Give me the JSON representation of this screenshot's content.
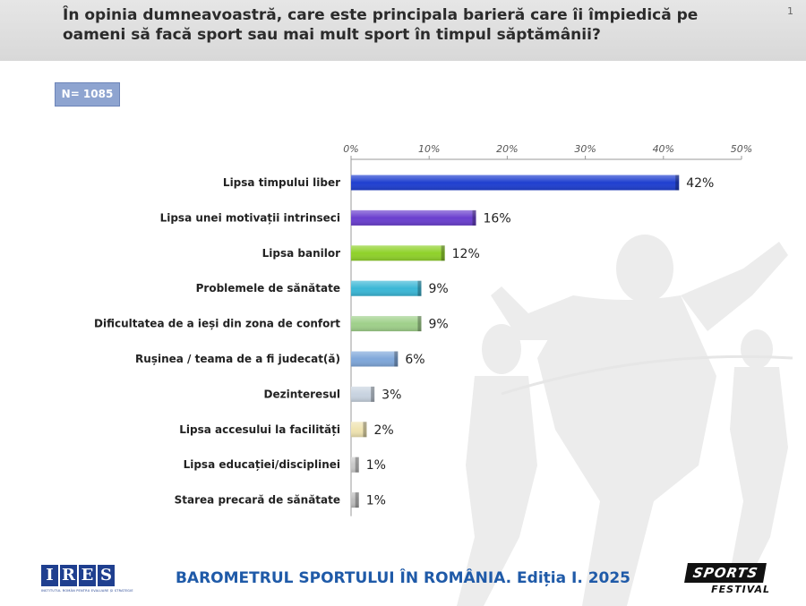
{
  "header": {
    "title_line1": "În opinia dumneavoastră, care este principala barieră care îi împiedică pe",
    "title_line2": "oameni să facă sport sau mai mult sport în timpul săptămânii?",
    "slide_mark": "1"
  },
  "sample": {
    "label": "N= 1085"
  },
  "chart_data": {
    "type": "bar",
    "orientation": "horizontal",
    "categories": [
      "Lipsa timpului liber",
      "Lipsa unei motivații intrinseci",
      "Lipsa banilor",
      "Problemele de sănătate",
      "Dificultatea de a ieși din zona de confort",
      "Rușinea / teama de a fi judecat(ă)",
      "Dezinteresul",
      "Lipsa accesului la facilități",
      "Lipsa educației/disciplinei",
      "Starea precară de sănătate"
    ],
    "values": [
      42,
      16,
      12,
      9,
      9,
      6,
      3,
      2,
      1,
      1
    ],
    "value_labels": [
      "42%",
      "16%",
      "12%",
      "9%",
      "9%",
      "6%",
      "3%",
      "2%",
      "1%",
      "1%"
    ],
    "colors": [
      "#1f3fd0",
      "#6a3fcf",
      "#8fd12a",
      "#3bb7d6",
      "#9fd08a",
      "#7fa7da",
      "#c8d3e0",
      "#efe3b0",
      "#c9c9c9",
      "#bdbdbd"
    ],
    "xlim": [
      0,
      50
    ],
    "ticks": [
      "0%",
      "10%",
      "20%",
      "30%",
      "40%",
      "50%"
    ],
    "axis_position": "top",
    "grid": false
  },
  "footer": {
    "title": "BAROMETRUL SPORTULUI ÎN ROMÂNIA. Ediția I. 2025",
    "ires_logo_text": "IRES",
    "ires_subtext": "INSTITUTUL ROMÂN PENTRU EVALUARE ȘI STRATEGIE",
    "sports_logo_top": "SPORTS",
    "sports_logo_bottom": "FESTIVAL"
  },
  "icons": {
    "background": "runner-silhouette-icon"
  }
}
